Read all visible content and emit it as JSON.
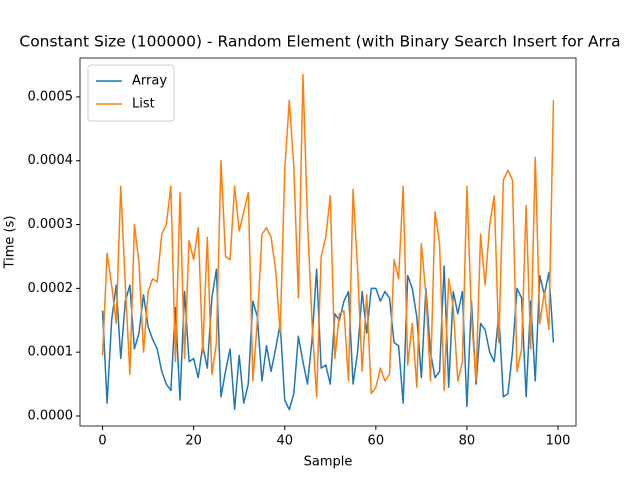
{
  "chart_data": {
    "type": "line",
    "title": "Constant Size (100000) - Random Element (with Binary Search Insert for Arra",
    "x_label": "Sample",
    "y_label": "Time (s)",
    "x": [
      0,
      1,
      2,
      3,
      4,
      5,
      6,
      7,
      8,
      9,
      10,
      11,
      12,
      13,
      14,
      15,
      16,
      17,
      18,
      19,
      20,
      21,
      22,
      23,
      24,
      25,
      26,
      27,
      28,
      29,
      30,
      31,
      32,
      33,
      34,
      35,
      36,
      37,
      38,
      39,
      40,
      41,
      42,
      43,
      44,
      45,
      46,
      47,
      48,
      49,
      50,
      51,
      52,
      53,
      54,
      55,
      56,
      57,
      58,
      59,
      60,
      61,
      62,
      63,
      64,
      65,
      66,
      67,
      68,
      69,
      70,
      71,
      72,
      73,
      74,
      75,
      76,
      77,
      78,
      79,
      80,
      81,
      82,
      83,
      84,
      85,
      86,
      87,
      88,
      89,
      90,
      91,
      92,
      93,
      94,
      95,
      96,
      97,
      98,
      99
    ],
    "series": [
      {
        "name": "Array",
        "color": "#1f77b4",
        "values": [
          0.000165,
          2e-05,
          0.00015,
          0.000205,
          9e-05,
          0.00018,
          0.000205,
          0.000105,
          0.00013,
          0.00019,
          0.00014,
          0.00012,
          0.000105,
          7e-05,
          5e-05,
          4e-05,
          0.00017,
          2.5e-05,
          0.000195,
          8.5e-05,
          9e-05,
          6e-05,
          0.00011,
          7.5e-05,
          0.000185,
          0.00023,
          3e-05,
          7e-05,
          0.000105,
          1e-05,
          9.5e-05,
          2e-05,
          5e-05,
          0.00018,
          0.000155,
          5.5e-05,
          0.00011,
          7e-05,
          0.000105,
          0.000145,
          2.5e-05,
          1e-05,
          3.5e-05,
          0.000125,
          8.5e-05,
          5e-05,
          0.00012,
          0.00023,
          7.5e-05,
          8e-05,
          5e-05,
          0.00016,
          0.00015,
          0.00018,
          0.000195,
          5e-05,
          0.0001,
          0.000195,
          0.00013,
          0.0002,
          0.0002,
          0.00018,
          0.000195,
          0.000185,
          0.000115,
          0.00011,
          2e-05,
          0.00022,
          0.0002,
          0.000155,
          6e-05,
          0.0002,
          0.0001,
          6e-05,
          7e-05,
          0.000235,
          4.5e-05,
          0.000195,
          0.00016,
          0.000195,
          1.5e-05,
          0.00018,
          5e-05,
          0.000145,
          0.000135,
          0.0001,
          8.5e-05,
          0.00016,
          3e-05,
          3.5e-05,
          0.0001,
          0.0002,
          0.000185,
          3e-05,
          0.00018,
          5.5e-05,
          0.00022,
          0.00019,
          0.000225,
          0.000115
        ]
      },
      {
        "name": "List",
        "color": "#ff7f0e",
        "values": [
          9.5e-05,
          0.000255,
          0.000205,
          0.000145,
          0.00036,
          0.000205,
          6.5e-05,
          0.0003,
          0.00024,
          0.0001,
          0.000195,
          0.000215,
          0.00021,
          0.000285,
          0.0003,
          0.00036,
          8.5e-05,
          0.00035,
          9e-05,
          0.000275,
          0.000245,
          0.000295,
          0.0001,
          0.00028,
          6.5e-05,
          0.000115,
          0.0004,
          0.00025,
          0.000245,
          0.00036,
          0.00029,
          0.00032,
          0.00035,
          5.5e-05,
          0.00015,
          0.000285,
          0.000295,
          0.00028,
          0.00023,
          0.00013,
          0.000385,
          0.000495,
          0.00039,
          0.000185,
          0.000535,
          0.000305,
          0.000145,
          3e-05,
          0.00025,
          0.00028,
          0.000345,
          9e-05,
          0.00016,
          0.000165,
          5.5e-05,
          0.000355,
          0.00023,
          7e-05,
          0.00019,
          3.5e-05,
          4.5e-05,
          7.5e-05,
          5.5e-05,
          6.5e-05,
          0.000245,
          0.000215,
          0.00036,
          8e-05,
          0.000145,
          4.5e-05,
          0.00027,
          0.00019,
          5.5e-05,
          0.00032,
          0.00027,
          4e-05,
          0.000215,
          0.00017,
          5.5e-05,
          8.5e-05,
          0.00036,
          0.000155,
          5.5e-05,
          0.000285,
          0.000205,
          0.0003,
          0.000345,
          0.000115,
          0.00037,
          0.000385,
          0.00037,
          7e-05,
          0.000105,
          0.00033,
          0.000105,
          0.000405,
          0.000145,
          0.000195,
          0.000135,
          0.000495
        ]
      }
    ],
    "xlim": [
      -4.95,
      103.95
    ],
    "xticks": [
      0,
      20,
      40,
      60,
      80,
      100
    ],
    "ylim": [
      -1.57e-05,
      0.000561
    ],
    "yticks": [
      {
        "value": 0,
        "label": "0.0000"
      },
      {
        "value": 0.0001,
        "label": "0.0001"
      },
      {
        "value": 0.0002,
        "label": "0.0002"
      },
      {
        "value": 0.0003,
        "label": "0.0003"
      },
      {
        "value": 0.0004,
        "label": "0.0004"
      },
      {
        "value": 0.0005,
        "label": "0.0005"
      }
    ],
    "legend": "upper left",
    "grid": false
  }
}
